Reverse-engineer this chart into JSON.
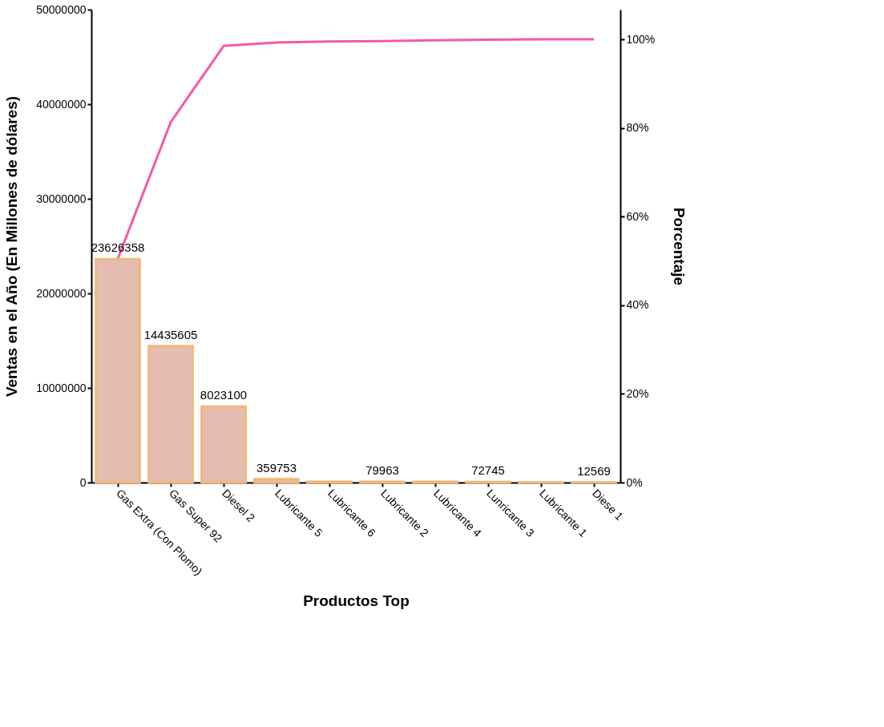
{
  "chart_data": {
    "type": "bar",
    "xlabel": "Productos Top",
    "ylabel": "Ventas en el Año (En Millones de dólares)",
    "y2label": "Porcentaje",
    "categories": [
      "Gas Extra (Con Plomo)",
      "Gas Super 92",
      "Diesel 2",
      "Lubricante 5",
      "Lubricante 6",
      "Lubricante 2",
      "Lubricante 4",
      "Lunricante 3",
      "Lubricante 1",
      "Diese 1"
    ],
    "series": [
      {
        "color": "#e5bcb0",
        "values": [
          23626358,
          14435605,
          8023100,
          359753,
          80000,
          79963,
          80000,
          72745,
          20000,
          12569
        ],
        "value_labels": [
          "23626358",
          "14435605",
          "8023100",
          "359753",
          null,
          "79963",
          null,
          "72745",
          null,
          "12569"
        ]
      },
      {
        "type": "line",
        "axis": "y2",
        "color": "#f25aa8",
        "values": [
          50.5,
          81.3,
          98.5,
          99.3,
          99.5,
          99.6,
          99.8,
          99.9,
          100,
          100
        ]
      }
    ],
    "ylim": [
      0,
      50000000
    ],
    "yticks": [
      0,
      10000000,
      20000000,
      30000000,
      40000000,
      50000000
    ],
    "y2lim": [
      0,
      106.7
    ],
    "y2ticks": [
      {
        "value": 0,
        "label": "0%"
      },
      {
        "value": 20,
        "label": "20%"
      },
      {
        "value": 40,
        "label": "40%"
      },
      {
        "value": 60,
        "label": "60%"
      },
      {
        "value": 80,
        "label": "80%"
      },
      {
        "value": 100,
        "label": "100%"
      }
    ],
    "grid": false
  }
}
